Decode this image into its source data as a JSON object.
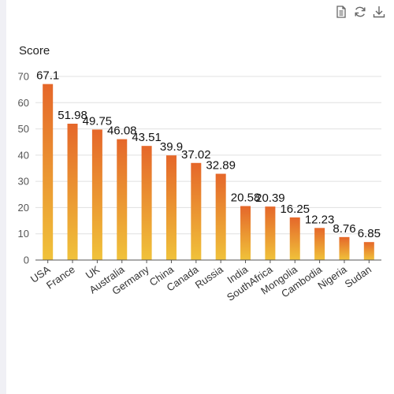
{
  "toolbox": {
    "icons": [
      "data-view-icon",
      "restore-icon",
      "download-icon"
    ]
  },
  "chart_data": {
    "type": "bar",
    "ylabel": "Score",
    "ylim": [
      0,
      70
    ],
    "yticks": [
      0,
      10,
      20,
      30,
      40,
      50,
      60,
      70
    ],
    "categories": [
      "USA",
      "France",
      "UK",
      "Australia",
      "Germany",
      "China",
      "Canada",
      "Russia",
      "India",
      "SouthAfrica",
      "Mongolia",
      "Cambodia",
      "Nigeria",
      "Sudan"
    ],
    "values": [
      67.1,
      51.98,
      49.75,
      46.08,
      43.51,
      39.9,
      37.02,
      32.89,
      20.58,
      20.39,
      16.25,
      12.23,
      8.76,
      6.85
    ],
    "data_labels": [
      "67.1",
      "51.98",
      "49.75",
      "46.08",
      "43.51",
      "39.9",
      "37.02",
      "32.89",
      "20.58",
      "20.39",
      "16.25",
      "12.23",
      "8.76",
      "6.85"
    ],
    "grid": true,
    "bar_gradient": {
      "top": "#e5672a",
      "bottom": "#f0c23a"
    },
    "grid_color": "#e0e0e0"
  }
}
